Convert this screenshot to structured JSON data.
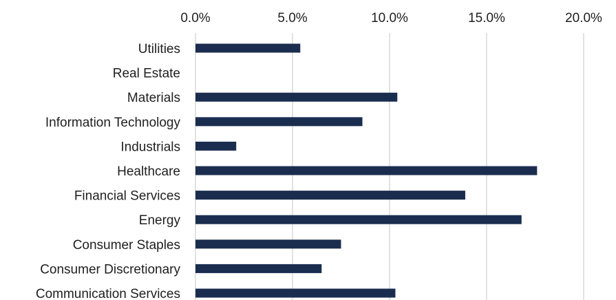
{
  "chart_data": {
    "type": "bar",
    "orientation": "horizontal",
    "title": "",
    "xlabel": "",
    "ylabel": "",
    "xlim": [
      0,
      20
    ],
    "x_ticks": [
      "0.0%",
      "5.0%",
      "10.0%",
      "15.0%",
      "20.0%"
    ],
    "x_tick_values": [
      0,
      5,
      10,
      15,
      20
    ],
    "x_axis_position": "top",
    "grid": true,
    "legend": "none",
    "bar_color": "#1b2d4f",
    "grid_color": "#d9d9d9",
    "categories": [
      "Utilities",
      "Real Estate",
      "Materials",
      "Information Technology",
      "Industrials",
      "Healthcare",
      "Financial Services",
      "Energy",
      "Consumer Staples",
      "Consumer Discretionary",
      "Communication Services"
    ],
    "values": [
      5.4,
      0,
      10.4,
      8.6,
      2.1,
      17.6,
      13.9,
      16.8,
      7.5,
      6.5,
      10.3
    ]
  }
}
